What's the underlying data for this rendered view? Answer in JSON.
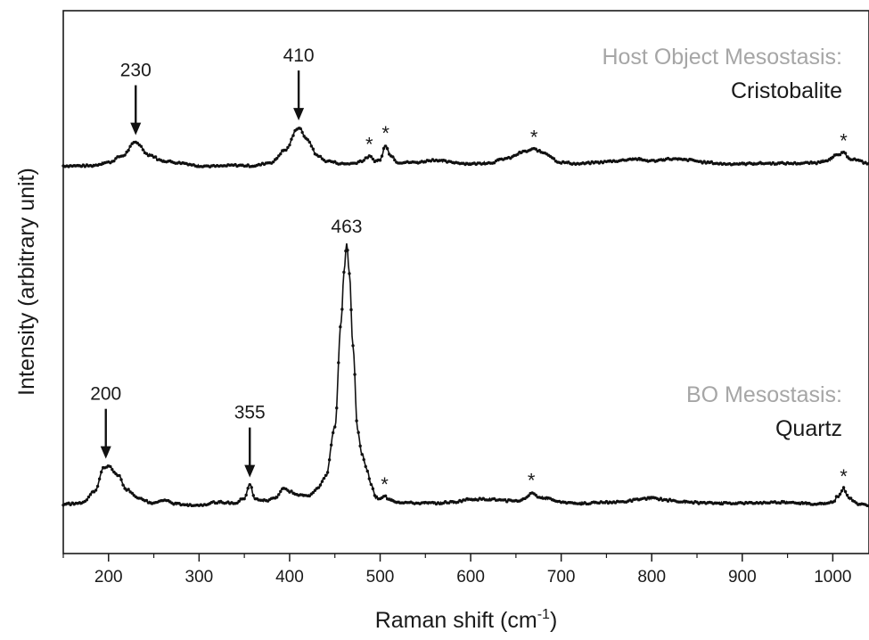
{
  "chart_data": {
    "type": "line",
    "xlabel_main": "Raman shift (cm",
    "xlabel_sup": "-1",
    "xlabel_end": ")",
    "ylabel": "Intensity (arbitrary unit)",
    "xlim": [
      150,
      1040
    ],
    "ylim": [
      0,
      1
    ],
    "x_ticks": [
      200,
      300,
      400,
      500,
      600,
      700,
      800,
      900,
      1000
    ],
    "x_tick_labels": [
      "200",
      "300",
      "400",
      "500",
      "600",
      "700",
      "800",
      "900",
      "1000"
    ],
    "y_ticks_shown": false,
    "series": [
      {
        "label_line1": "Host Object Mesostasis:",
        "label_line2": "Cristobalite",
        "baseline": 0.735,
        "points": [
          [
            150,
            0.738
          ],
          [
            180,
            0.738
          ],
          [
            200,
            0.745
          ],
          [
            215,
            0.758
          ],
          [
            230,
            0.786
          ],
          [
            245,
            0.76
          ],
          [
            260,
            0.748
          ],
          [
            280,
            0.744
          ],
          [
            300,
            0.738
          ],
          [
            320,
            0.737
          ],
          [
            340,
            0.739
          ],
          [
            360,
            0.738
          ],
          [
            380,
            0.745
          ],
          [
            395,
            0.77
          ],
          [
            410,
            0.816
          ],
          [
            420,
            0.79
          ],
          [
            430,
            0.76
          ],
          [
            440,
            0.748
          ],
          [
            460,
            0.742
          ],
          [
            470,
            0.743
          ],
          [
            480,
            0.748
          ],
          [
            488,
            0.757
          ],
          [
            495,
            0.748
          ],
          [
            500,
            0.75
          ],
          [
            506,
            0.78
          ],
          [
            512,
            0.758
          ],
          [
            520,
            0.745
          ],
          [
            540,
            0.745
          ],
          [
            560,
            0.75
          ],
          [
            580,
            0.745
          ],
          [
            600,
            0.742
          ],
          [
            620,
            0.744
          ],
          [
            640,
            0.753
          ],
          [
            660,
            0.767
          ],
          [
            670,
            0.772
          ],
          [
            680,
            0.765
          ],
          [
            700,
            0.745
          ],
          [
            720,
            0.742
          ],
          [
            740,
            0.745
          ],
          [
            760,
            0.748
          ],
          [
            780,
            0.752
          ],
          [
            800,
            0.748
          ],
          [
            820,
            0.752
          ],
          [
            840,
            0.75
          ],
          [
            860,
            0.745
          ],
          [
            880,
            0.742
          ],
          [
            900,
            0.742
          ],
          [
            920,
            0.743
          ],
          [
            940,
            0.743
          ],
          [
            960,
            0.743
          ],
          [
            980,
            0.744
          ],
          [
            995,
            0.75
          ],
          [
            1005,
            0.76
          ],
          [
            1012,
            0.764
          ],
          [
            1020,
            0.752
          ],
          [
            1040,
            0.743
          ]
        ]
      },
      {
        "label_line1": "BO Mesostasis:",
        "label_line2": "Quartz",
        "baseline": 0.045,
        "points": [
          [
            150,
            0.048
          ],
          [
            170,
            0.05
          ],
          [
            185,
            0.075
          ],
          [
            195,
            0.122
          ],
          [
            200,
            0.126
          ],
          [
            210,
            0.108
          ],
          [
            220,
            0.078
          ],
          [
            235,
            0.058
          ],
          [
            250,
            0.05
          ],
          [
            262,
            0.056
          ],
          [
            275,
            0.048
          ],
          [
            300,
            0.046
          ],
          [
            320,
            0.052
          ],
          [
            340,
            0.05
          ],
          [
            350,
            0.06
          ],
          [
            356,
            0.088
          ],
          [
            362,
            0.058
          ],
          [
            375,
            0.055
          ],
          [
            385,
            0.062
          ],
          [
            393,
            0.08
          ],
          [
            400,
            0.074
          ],
          [
            410,
            0.066
          ],
          [
            420,
            0.065
          ],
          [
            430,
            0.078
          ],
          [
            440,
            0.105
          ],
          [
            450,
            0.205
          ],
          [
            457,
            0.42
          ],
          [
            460,
            0.52
          ],
          [
            463,
            0.58
          ],
          [
            466,
            0.52
          ],
          [
            470,
            0.37
          ],
          [
            475,
            0.2
          ],
          [
            480,
            0.15
          ],
          [
            485,
            0.12
          ],
          [
            490,
            0.09
          ],
          [
            495,
            0.062
          ],
          [
            500,
            0.058
          ],
          [
            505,
            0.064
          ],
          [
            510,
            0.058
          ],
          [
            520,
            0.052
          ],
          [
            540,
            0.05
          ],
          [
            560,
            0.05
          ],
          [
            580,
            0.052
          ],
          [
            600,
            0.058
          ],
          [
            620,
            0.058
          ],
          [
            640,
            0.055
          ],
          [
            655,
            0.055
          ],
          [
            662,
            0.062
          ],
          [
            667,
            0.072
          ],
          [
            675,
            0.062
          ],
          [
            690,
            0.058
          ],
          [
            700,
            0.052
          ],
          [
            720,
            0.05
          ],
          [
            760,
            0.052
          ],
          [
            800,
            0.06
          ],
          [
            820,
            0.056
          ],
          [
            840,
            0.052
          ],
          [
            860,
            0.05
          ],
          [
            900,
            0.05
          ],
          [
            950,
            0.052
          ],
          [
            980,
            0.048
          ],
          [
            1000,
            0.052
          ],
          [
            1006,
            0.065
          ],
          [
            1012,
            0.08
          ],
          [
            1018,
            0.06
          ],
          [
            1030,
            0.047
          ],
          [
            1040,
            0.046
          ]
        ]
      }
    ],
    "annotations": [
      {
        "text": "230",
        "x": 230,
        "y": 0.786,
        "arrow": true
      },
      {
        "text": "410",
        "x": 410,
        "y": 0.816,
        "arrow": true
      },
      {
        "text": "200",
        "x": 197,
        "y": 0.126,
        "arrow": true
      },
      {
        "text": "355",
        "x": 356,
        "y": 0.088,
        "arrow": true
      },
      {
        "text": "463",
        "x": 463,
        "y": 0.58,
        "arrow": false
      }
    ],
    "stars": [
      {
        "text": "*",
        "x": 488,
        "y": 0.757
      },
      {
        "text": "*",
        "x": 506,
        "y": 0.78
      },
      {
        "text": "*",
        "x": 670,
        "y": 0.772
      },
      {
        "text": "*",
        "x": 1012,
        "y": 0.764
      },
      {
        "text": "*",
        "x": 505,
        "y": 0.064
      },
      {
        "text": "*",
        "x": 667,
        "y": 0.072
      },
      {
        "text": "*",
        "x": 1012,
        "y": 0.08
      }
    ]
  }
}
